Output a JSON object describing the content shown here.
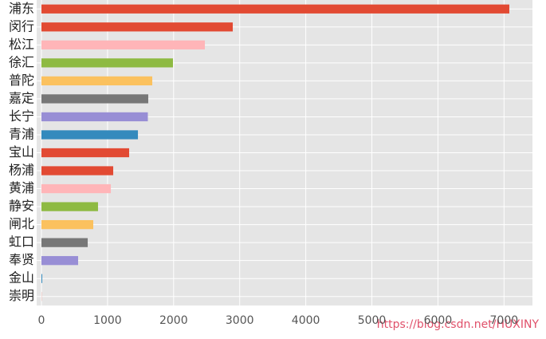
{
  "chart_data": {
    "type": "barh",
    "categories": [
      "浦东",
      "闵行",
      "松江",
      "徐汇",
      "普陀",
      "嘉定",
      "长宁",
      "青浦",
      "宝山",
      "杨浦",
      "黄浦",
      "静安",
      "闸北",
      "虹口",
      "奉贤",
      "金山",
      "崇明"
    ],
    "values": [
      7080,
      2895,
      2473,
      1990,
      1677,
      1616,
      1610,
      1460,
      1327,
      1086,
      1050,
      856,
      784,
      700,
      555,
      12,
      2
    ],
    "colors": [
      "#E24A33",
      "#E24A33",
      "#FFB5B8",
      "#8EBA42",
      "#FBC15E",
      "#777777",
      "#988ED5",
      "#348ABD",
      "#E24A33",
      "#E24A33",
      "#FFB5B8",
      "#8EBA42",
      "#FBC15E",
      "#777777",
      "#988ED5",
      "#348ABD",
      "#E24A33"
    ],
    "xlim": [
      0,
      7430
    ],
    "xticks": [
      0,
      1000,
      2000,
      3000,
      4000,
      5000,
      6000,
      7000
    ],
    "grid": true,
    "watermark": "https://blog.csdn.net/HUXINY"
  }
}
